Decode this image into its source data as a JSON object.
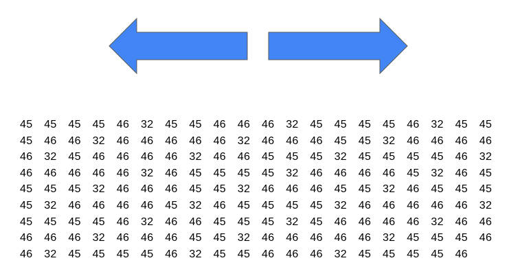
{
  "arrows": [
    {
      "name": "left-arrow-icon",
      "direction": "left",
      "fill": "#4285f4",
      "stroke": "#5b5b5b"
    },
    {
      "name": "right-arrow-icon",
      "direction": "right",
      "fill": "#4285f4",
      "stroke": "#5b5b5b"
    }
  ],
  "grid": {
    "rows": [
      [
        "45",
        "45",
        "45",
        "45",
        "46",
        "32",
        "45",
        "45",
        "46",
        "46",
        "46",
        "32",
        "45",
        "45",
        "45",
        "45",
        "46",
        "32",
        "45",
        "45"
      ],
      [
        "45",
        "46",
        "46",
        "32",
        "46",
        "46",
        "46",
        "46",
        "46",
        "32",
        "46",
        "46",
        "46",
        "45",
        "45",
        "32",
        "46",
        "46",
        "46",
        "46"
      ],
      [
        "46",
        "32",
        "45",
        "46",
        "46",
        "46",
        "46",
        "32",
        "46",
        "46",
        "45",
        "45",
        "45",
        "32",
        "45",
        "45",
        "45",
        "45",
        "46",
        "32"
      ],
      [
        "46",
        "46",
        "46",
        "46",
        "46",
        "32",
        "46",
        "45",
        "45",
        "45",
        "45",
        "32",
        "46",
        "46",
        "46",
        "46",
        "45",
        "32",
        "46",
        "45"
      ],
      [
        "45",
        "45",
        "45",
        "32",
        "46",
        "46",
        "46",
        "45",
        "45",
        "32",
        "46",
        "46",
        "46",
        "45",
        "45",
        "32",
        "46",
        "45",
        "45",
        "45"
      ],
      [
        "45",
        "32",
        "46",
        "46",
        "46",
        "46",
        "45",
        "32",
        "46",
        "45",
        "45",
        "45",
        "45",
        "32",
        "46",
        "46",
        "46",
        "46",
        "46",
        "32"
      ],
      [
        "45",
        "45",
        "45",
        "45",
        "46",
        "32",
        "46",
        "46",
        "45",
        "45",
        "45",
        "32",
        "45",
        "46",
        "46",
        "46",
        "46",
        "32",
        "46",
        "46"
      ],
      [
        "46",
        "46",
        "46",
        "32",
        "46",
        "46",
        "46",
        "45",
        "45",
        "32",
        "46",
        "46",
        "46",
        "46",
        "46",
        "32",
        "45",
        "45",
        "45",
        "46"
      ],
      [
        "46",
        "32",
        "45",
        "45",
        "45",
        "45",
        "46",
        "32",
        "45",
        "45",
        "46",
        "46",
        "46",
        "32",
        "45",
        "45",
        "45",
        "45",
        "46"
      ]
    ]
  }
}
